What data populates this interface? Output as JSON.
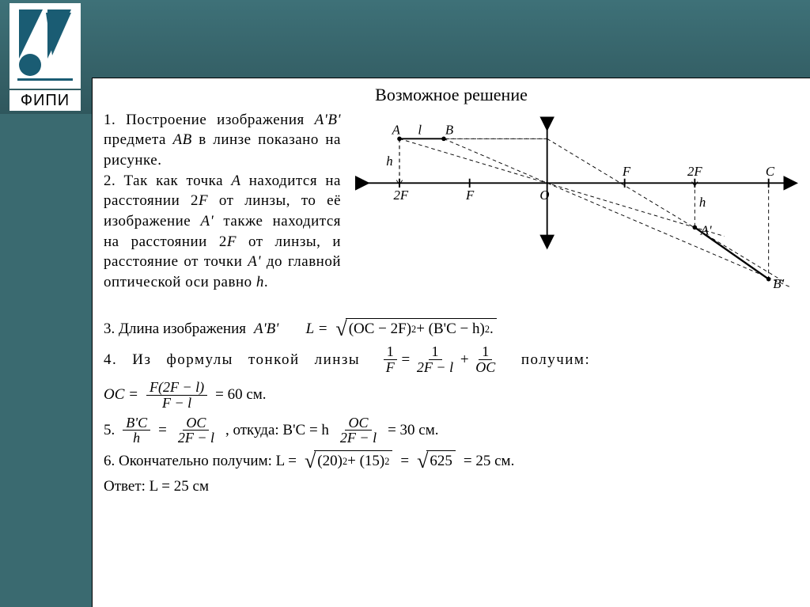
{
  "logo_label": "ФИПИ",
  "title": "Возможное решение",
  "para1_html": "1. Построение изображения <span class='it'>A'B'</span> предмета <span class='it'>AB</span> в линзе показано на рисунке.<br>2. Так как точка <span class='it'>A</span> находится на расстоянии 2<span class='it'>F</span> от линзы, то её изображение <span class='it'>A'</span> также находится на расстоянии 2<span class='it'>F</span> от линзы, и расстояние от точки <span class='it'>A'</span> до главной оптической оси равно <span class='it'>h</span>.",
  "line3_lead": "3. Длина изображения",
  "line3_AB": "A'B'",
  "line3_L": "L =",
  "line3_sqrt": "(OC − 2F)<sup>2</sup> + (B'C − h)<sup>2</sup> .",
  "line4_a": "4.",
  "line4_b": "Из",
  "line4_c": "формулы",
  "line4_d": "тонкой",
  "line4_e": "линзы",
  "line4_tail": "получим:",
  "frac_1F_n": "1",
  "frac_1F_d": "F",
  "frac_12Fl_n": "1",
  "frac_12Fl_d": "2F − l",
  "frac_1OC_n": "1",
  "frac_1OC_d": "OC",
  "oc_lead": "OC =",
  "oc_frac_n": "F(2F − l)",
  "oc_frac_d": "F − l",
  "oc_tail": "= 60 см.",
  "line5_lead": "5.",
  "bc_h_n": "B'C",
  "bc_h_d": "h",
  "eq": " = ",
  "oc_2fl_n": "OC",
  "oc_2fl_d": "2F − l",
  "line5_mid": ", откуда:  B'C = h",
  "line5_tail": " = 30 см.",
  "line6_a": "6. Окончательно получим:  L =",
  "line6_sqrt1": "(20)<sup>2</sup> + (15)<sup>2</sup>",
  "line6_mid": " = ",
  "line6_sqrt2": "625",
  "line6_tail": " = 25 см.",
  "answer": "Ответ: L = 25 см",
  "diagram": {
    "axis_labels": [
      "2F",
      "F",
      "O",
      "F",
      "2F",
      "C",
      "A",
      "B",
      "A'",
      "B'",
      "l",
      "h",
      "h"
    ],
    "x_ticks": [
      60,
      155,
      260,
      365,
      460,
      560
    ],
    "y_axis_x": 260,
    "axis_y": 90,
    "object": {
      "A": [
        60,
        30
      ],
      "B": [
        120,
        30
      ]
    },
    "image": {
      "A'": [
        460,
        150
      ],
      "B'": [
        560,
        220
      ]
    },
    "stroke": "#000",
    "dash": "4 4"
  }
}
